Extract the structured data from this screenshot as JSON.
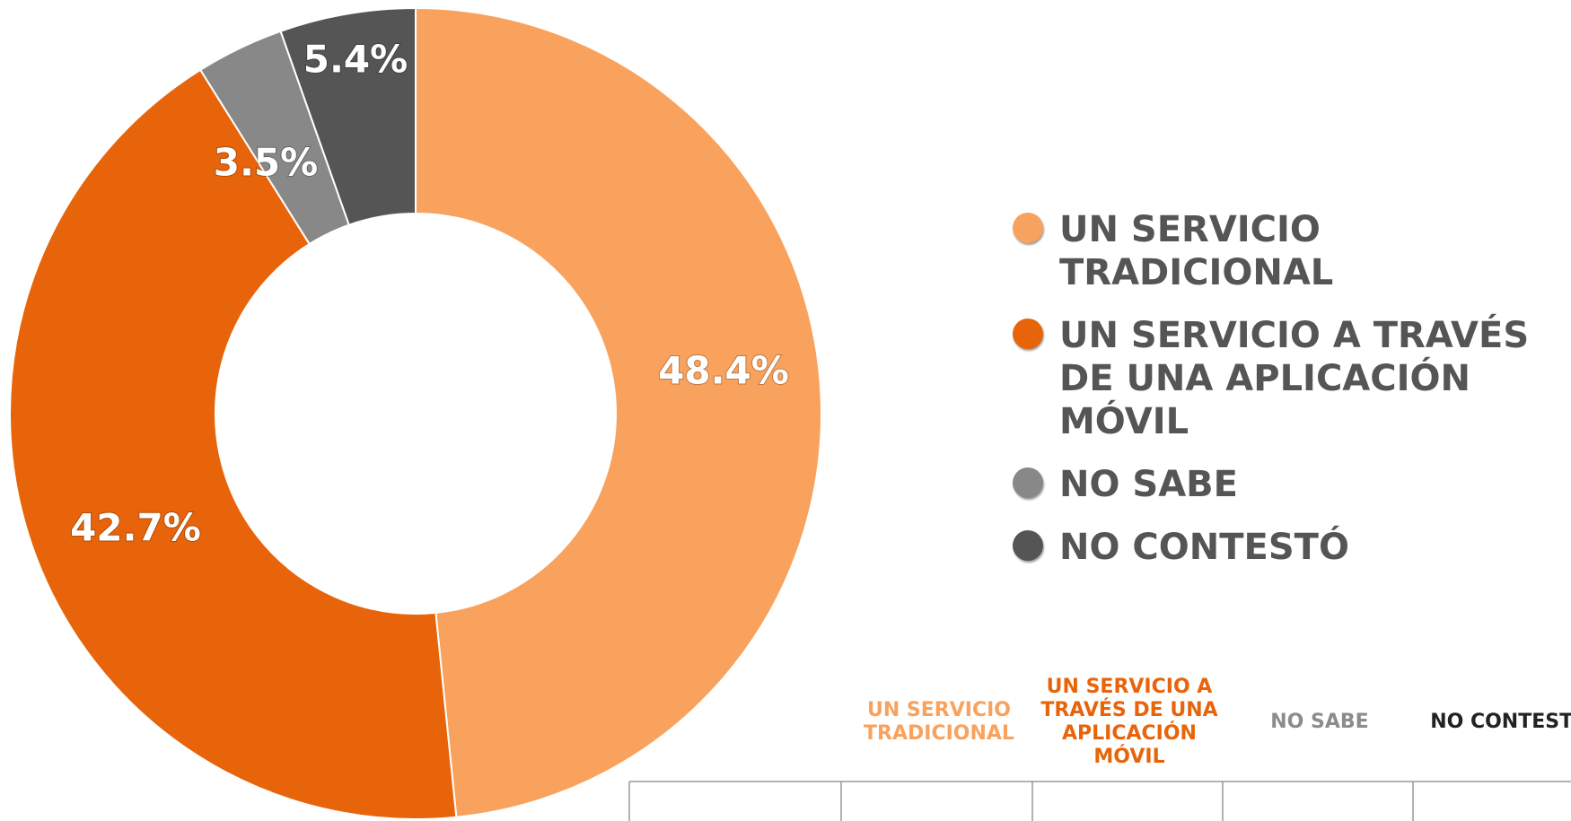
{
  "chart_data": {
    "type": "pie",
    "categories": [
      "UN SERVICIO TRADICIONAL",
      "UN SERVICIO A TRAVÉS DE UNA APLICACIÓN MÓVIL",
      "NO SABE",
      "NO CONTESTÓ"
    ],
    "values": [
      48.4,
      42.7,
      3.5,
      5.4
    ],
    "value_labels": [
      "48.4%",
      "42.7%",
      "3.5%",
      "5.4%"
    ],
    "colors": [
      "#f9a25e",
      "#e8640a",
      "#888888",
      "#555555"
    ],
    "donut": true,
    "legend": "right"
  },
  "table": {
    "headers": [
      "UN SERVICIO TRADICIONAL",
      "UN SERVICIO A TRAVÉS DE UNA APLICACIÓN MÓVIL",
      "NO SABE",
      "NO CONTESTÓ"
    ],
    "header_colors": [
      "#f9a25e",
      "#e8640a",
      "#8c8c8c",
      "#222222"
    ]
  }
}
